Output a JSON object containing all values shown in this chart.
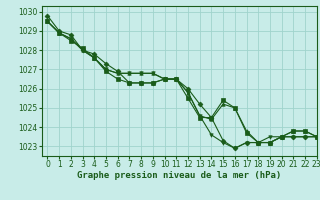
{
  "xlabel": "Graphe pression niveau de la mer (hPa)",
  "ylim": [
    1022.5,
    1030.3
  ],
  "xlim": [
    -0.5,
    23
  ],
  "yticks": [
    1023,
    1024,
    1025,
    1026,
    1027,
    1028,
    1029,
    1030
  ],
  "xticks": [
    0,
    1,
    2,
    3,
    4,
    5,
    6,
    7,
    8,
    9,
    10,
    11,
    12,
    13,
    14,
    15,
    16,
    17,
    18,
    19,
    20,
    21,
    22,
    23
  ],
  "bg_color": "#c8ece8",
  "line_color": "#1a5c1a",
  "grid_color": "#a0d4cc",
  "lines": [
    [
      1029.8,
      1029.0,
      1028.8,
      1028.0,
      1027.8,
      1027.3,
      1026.9,
      1026.3,
      1026.3,
      1026.3,
      1026.5,
      1026.5,
      1026.0,
      1025.2,
      1024.5,
      1023.3,
      1022.9,
      1023.2,
      1023.2,
      1023.2,
      1023.5,
      1023.5,
      1023.5,
      1023.5
    ],
    [
      1029.5,
      1028.9,
      1028.6,
      1028.0,
      1027.6,
      1027.0,
      1026.8,
      1026.8,
      1026.8,
      1026.8,
      1026.5,
      1026.5,
      1025.8,
      1024.6,
      1024.4,
      1025.2,
      1025.0,
      1023.8,
      1023.2,
      1023.2,
      1023.5,
      1023.8,
      1023.8,
      1023.5
    ],
    [
      1029.5,
      1028.9,
      1028.6,
      1028.0,
      1027.6,
      1027.0,
      1026.8,
      1026.8,
      1026.8,
      1026.8,
      1026.5,
      1026.5,
      1025.8,
      1024.6,
      1023.6,
      1023.2,
      1022.9,
      1023.2,
      1023.2,
      1023.5,
      1023.5,
      1023.5,
      1023.5,
      1023.5
    ],
    [
      1029.5,
      1028.9,
      1028.5,
      1028.1,
      1027.6,
      1026.9,
      1026.5,
      1026.3,
      1026.3,
      1026.3,
      1026.5,
      1026.5,
      1025.5,
      1024.5,
      1024.5,
      1025.4,
      1025.0,
      1023.7,
      1023.2,
      1023.2,
      1023.5,
      1023.8,
      1023.8,
      1023.5
    ]
  ],
  "markers": [
    "D",
    "^",
    "v",
    "s"
  ],
  "marker_size": 2.5,
  "linewidth": 0.8,
  "font_size_label": 6.5,
  "font_size_tick": 5.5
}
